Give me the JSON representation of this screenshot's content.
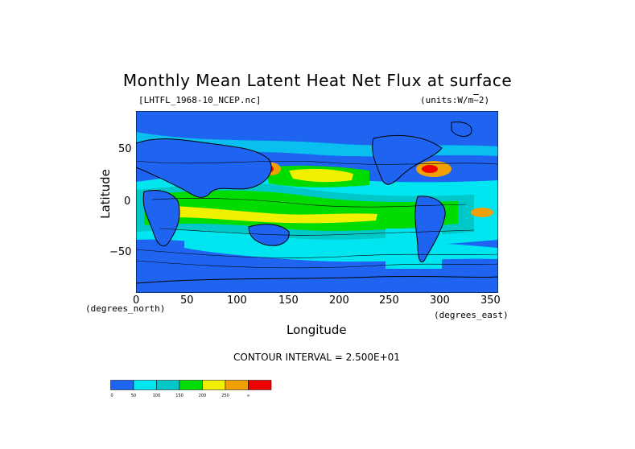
{
  "title": "Monthly Mean Latent Heat Net Flux at surface",
  "file_label": "[LHTFL_1968-10_NCEP.nc]",
  "units_label": "(units:W/m^2)",
  "y_axis": {
    "label": "Latitude",
    "unit_label": "(degrees_north)",
    "ticks": [
      "50",
      "0",
      "−50"
    ]
  },
  "x_axis": {
    "label": "Longitude",
    "unit_label": "(degrees_east)",
    "ticks": [
      "0",
      "50",
      "100",
      "150",
      "200",
      "250",
      "300",
      "350"
    ]
  },
  "contour_interval": "CONTOUR INTERVAL = 2.500E+01",
  "legend": {
    "colors": [
      "#1e64f0",
      "#00e6f0",
      "#00c8c8",
      "#00dc00",
      "#f0f000",
      "#f0a000",
      "#f00000"
    ],
    "labels": [
      "0",
      "50",
      "100",
      "150",
      "200",
      "250",
      "∞"
    ]
  },
  "map_colors": {
    "ocean_low": "#1e64f0",
    "band_50": "#00e6f0",
    "band_100": "#00c8c8",
    "band_150": "#00dc00",
    "band_200": "#f0f000",
    "band_250": "#f0a000",
    "band_300": "#f00000"
  }
}
